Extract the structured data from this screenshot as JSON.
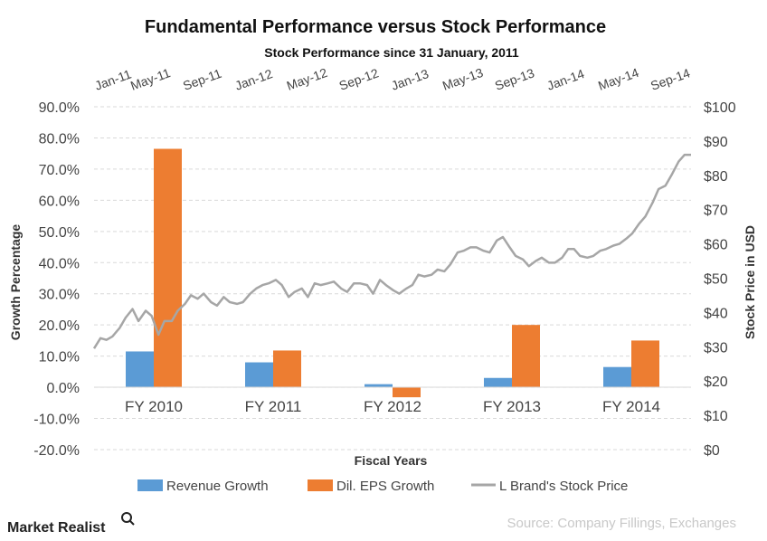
{
  "brand": "Market Realist",
  "source": "Source: Company Fillings, Exchanges",
  "chart_data": {
    "type": "bar+line",
    "title": "Fundamental Performance versus Stock Performance",
    "subtitle": "Stock Performance since 31 January, 2011",
    "xlabel": "Fiscal Years",
    "ylabel": "Growth Percentage",
    "y2label": "Stock Price in USD",
    "categories": [
      "FY 2010",
      "FY 2011",
      "FY 2012",
      "FY 2013",
      "FY 2014"
    ],
    "series": [
      {
        "name": "Revenue Growth",
        "color": "#5b9bd5",
        "values": [
          11.5,
          8.0,
          1.0,
          3.0,
          6.5
        ]
      },
      {
        "name": "Dil. EPS Growth",
        "color": "#ed7d31",
        "values": [
          76.5,
          11.8,
          -3.2,
          20.0,
          15.0
        ]
      }
    ],
    "ylim": [
      -20,
      90
    ],
    "yticks": [
      "-20.0%",
      "-10.0%",
      "0.0%",
      "10.0%",
      "20.0%",
      "30.0%",
      "40.0%",
      "50.0%",
      "60.0%",
      "70.0%",
      "80.0%",
      "90.0%"
    ],
    "y2lim": [
      0,
      100
    ],
    "y2ticks": [
      "$0",
      "$10",
      "$20",
      "$30",
      "$40",
      "$50",
      "$60",
      "$70",
      "$80",
      "$90",
      "$100"
    ],
    "top_xticks": [
      "Jan-11",
      "May-11",
      "Sep-11",
      "Jan-12",
      "May-12",
      "Sep-12",
      "Jan-13",
      "May-13",
      "Sep-13",
      "Jan-14",
      "May-14",
      "Sep-14"
    ],
    "top_xrange": [
      "2011-01-31",
      "2014-11-30"
    ],
    "stock_series": {
      "name": "L Brand's Stock Price",
      "color": "#a6a6a6",
      "dates": [
        "2011-01-31",
        "2011-02-15",
        "2011-03-01",
        "2011-03-15",
        "2011-04-01",
        "2011-04-15",
        "2011-05-01",
        "2011-05-15",
        "2011-06-01",
        "2011-06-15",
        "2011-07-01",
        "2011-07-15",
        "2011-08-01",
        "2011-08-15",
        "2011-09-01",
        "2011-09-15",
        "2011-10-01",
        "2011-10-15",
        "2011-11-01",
        "2011-11-15",
        "2011-12-01",
        "2011-12-15",
        "2012-01-01",
        "2012-01-15",
        "2012-02-01",
        "2012-02-15",
        "2012-03-01",
        "2012-03-15",
        "2012-04-01",
        "2012-04-15",
        "2012-05-01",
        "2012-05-15",
        "2012-06-01",
        "2012-06-15",
        "2012-07-01",
        "2012-07-15",
        "2012-08-01",
        "2012-08-15",
        "2012-09-01",
        "2012-09-15",
        "2012-10-01",
        "2012-10-15",
        "2012-11-01",
        "2012-11-15",
        "2012-12-01",
        "2012-12-15",
        "2013-01-01",
        "2013-01-15",
        "2013-02-01",
        "2013-02-15",
        "2013-03-01",
        "2013-03-15",
        "2013-04-01",
        "2013-04-15",
        "2013-05-01",
        "2013-05-15",
        "2013-06-01",
        "2013-06-15",
        "2013-07-01",
        "2013-07-15",
        "2013-08-01",
        "2013-08-15",
        "2013-09-01",
        "2013-09-15",
        "2013-10-01",
        "2013-10-15",
        "2013-11-01",
        "2013-11-15",
        "2013-12-01",
        "2013-12-15",
        "2014-01-01",
        "2014-01-15",
        "2014-02-01",
        "2014-02-15",
        "2014-03-01",
        "2014-03-15",
        "2014-04-01",
        "2014-04-15",
        "2014-05-01",
        "2014-05-15",
        "2014-06-01",
        "2014-06-15",
        "2014-07-01",
        "2014-07-15",
        "2014-08-01",
        "2014-08-15",
        "2014-09-01",
        "2014-09-15",
        "2014-10-01",
        "2014-10-15",
        "2014-11-01",
        "2014-11-15",
        "2014-11-30"
      ],
      "values": [
        29.5,
        32.5,
        32.0,
        33.0,
        35.5,
        38.5,
        41.0,
        37.5,
        40.5,
        39.0,
        33.5,
        37.5,
        37.5,
        40.5,
        42.5,
        45.0,
        44.0,
        45.5,
        43.0,
        42.0,
        44.5,
        43.0,
        42.5,
        43.0,
        45.5,
        47.0,
        48.0,
        48.5,
        49.5,
        48.0,
        44.5,
        46.0,
        47.0,
        44.5,
        48.5,
        48.0,
        48.5,
        49.0,
        47.0,
        46.0,
        48.5,
        48.5,
        48.0,
        45.5,
        49.5,
        48.0,
        46.5,
        45.5,
        47.0,
        48.0,
        51.0,
        50.5,
        51.0,
        52.5,
        52.0,
        54.0,
        57.5,
        58.0,
        59.0,
        59.0,
        58.0,
        57.5,
        61.0,
        62.0,
        59.0,
        56.5,
        55.5,
        53.5,
        55.0,
        56.0,
        54.5,
        54.5,
        56.0,
        58.5,
        58.5,
        56.5,
        56.0,
        56.5,
        58.0,
        58.5,
        59.5,
        60.0,
        61.5,
        63.0,
        66.0,
        68.0,
        72.0,
        76.0,
        77.0,
        80.0,
        84.0,
        86.0,
        86.0
      ]
    },
    "legend_position": "bottom",
    "grid": "horizontal dashed"
  }
}
